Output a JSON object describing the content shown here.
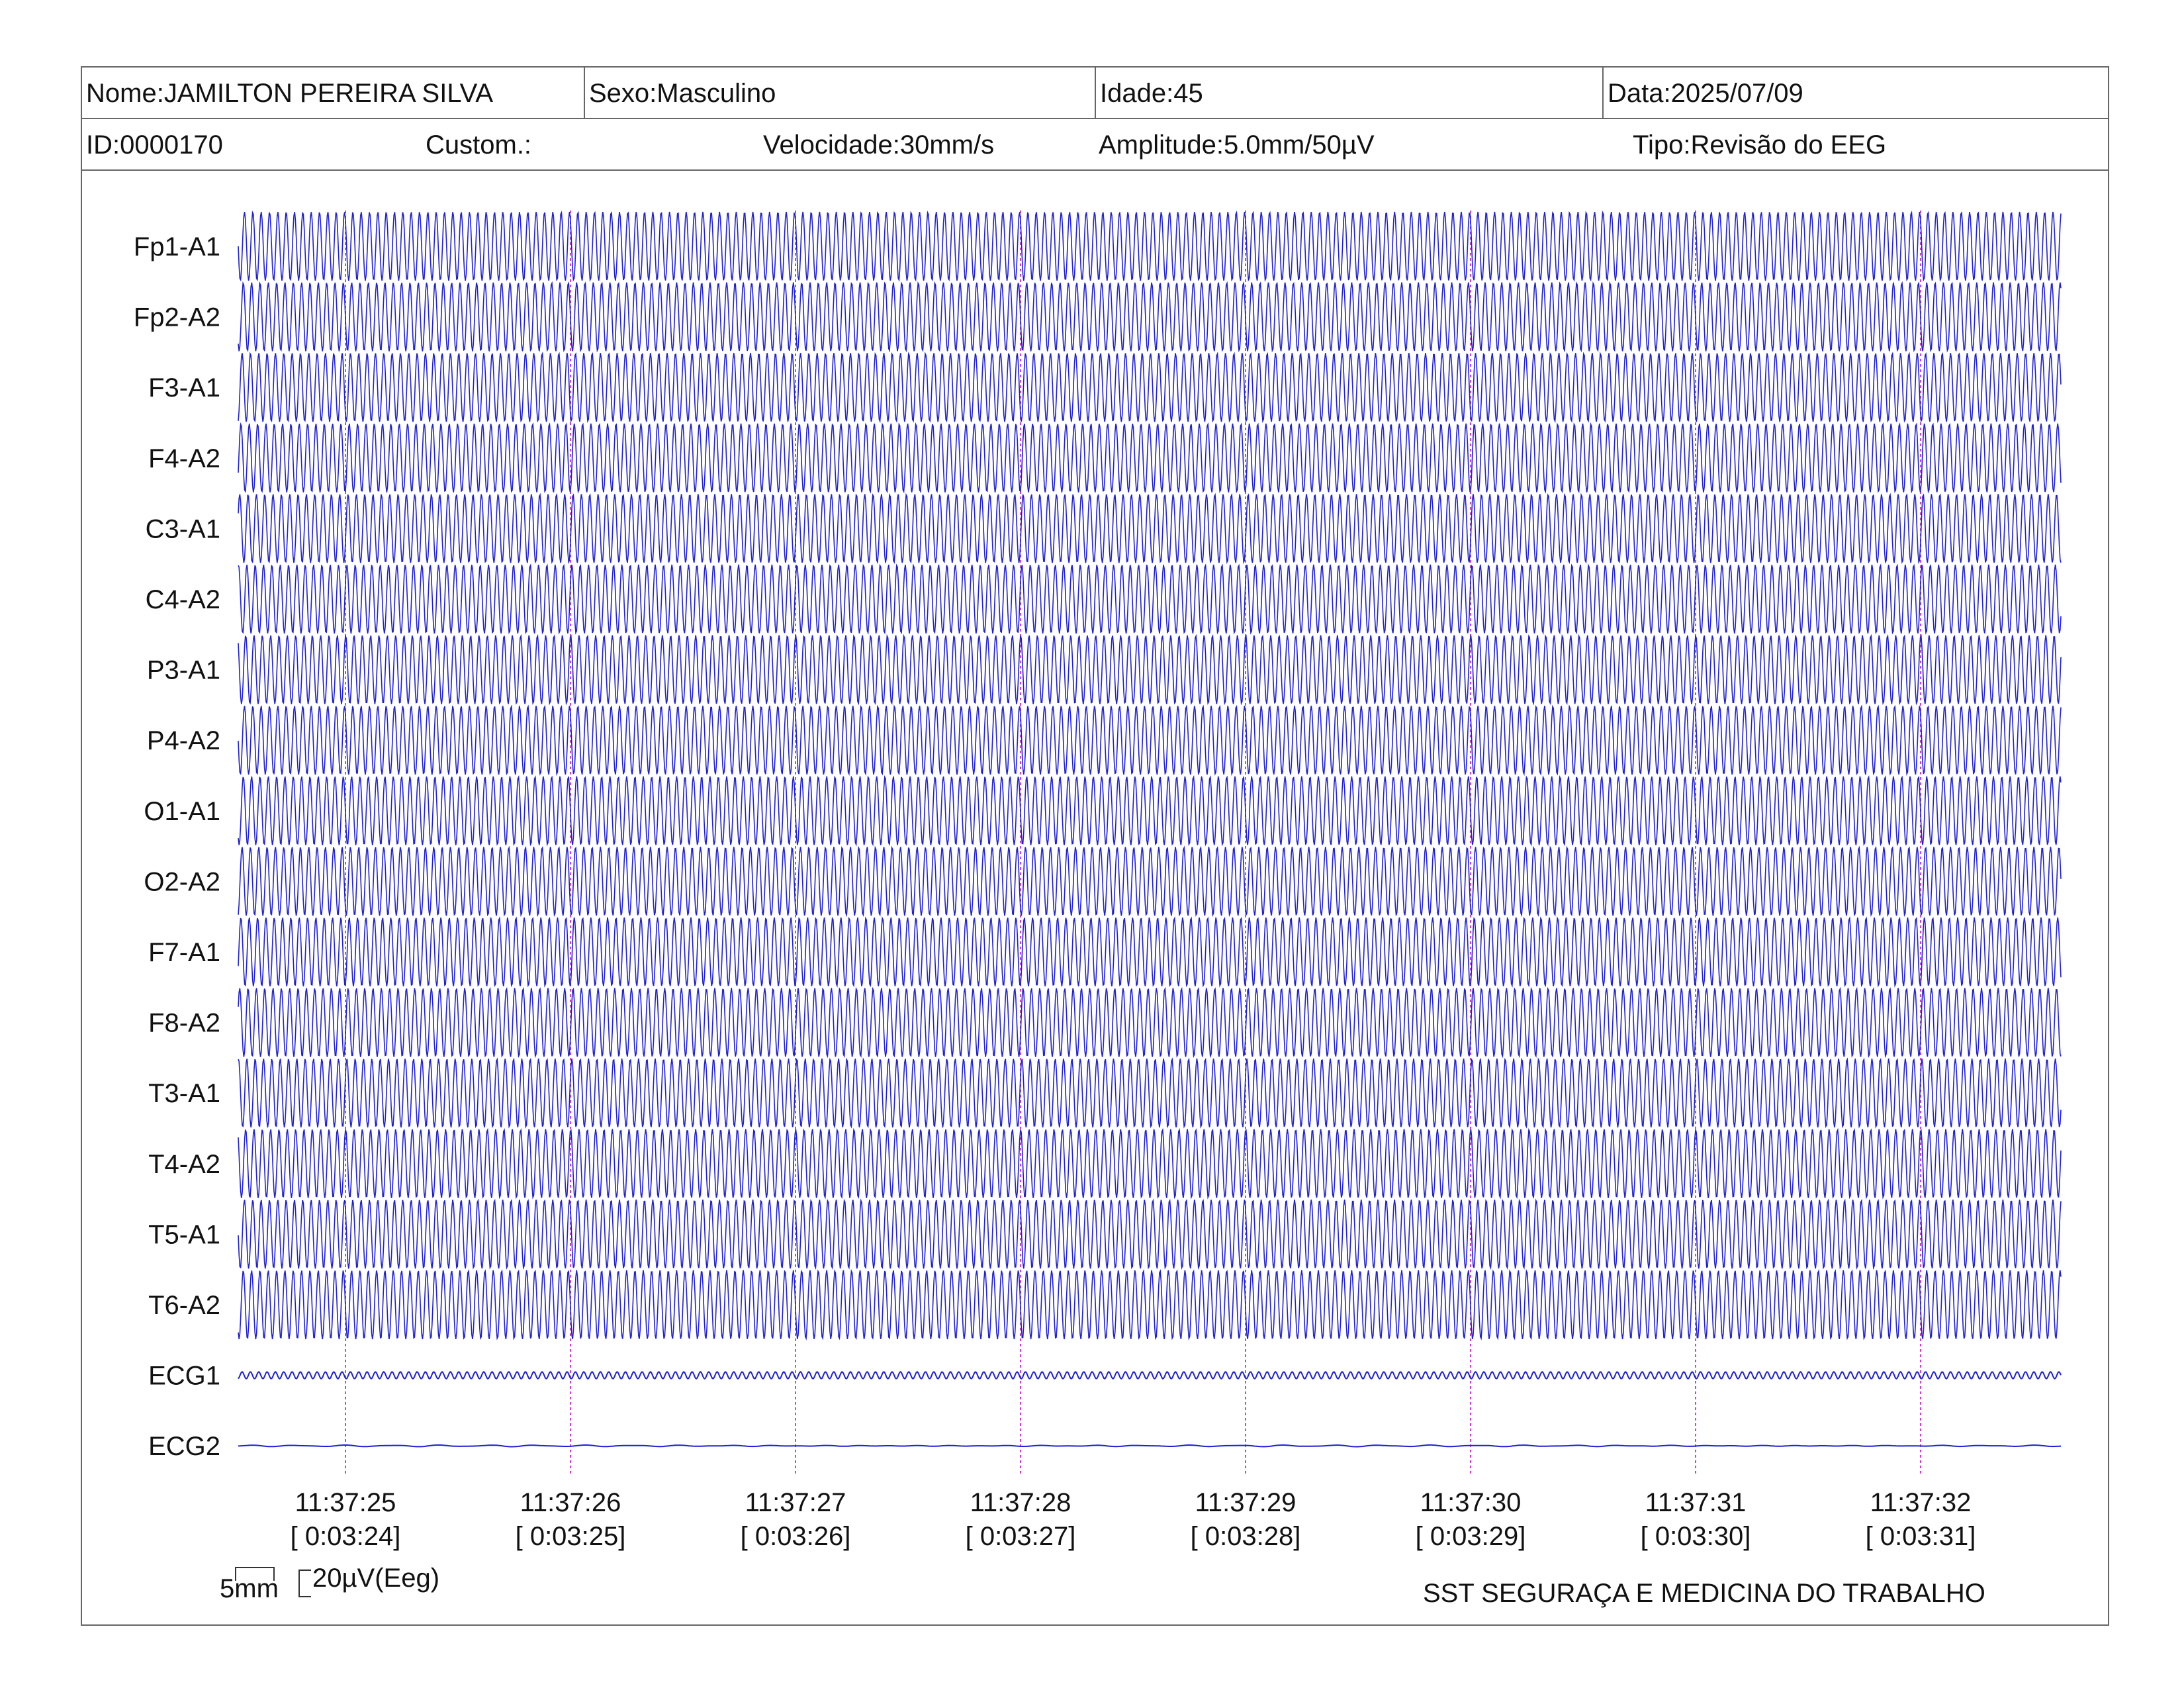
{
  "header": {
    "name": "Nome:JAMILTON PEREIRA SILVA",
    "sex": "Sexo:Masculino",
    "age": "Idade:45",
    "date": "Data:2025/07/09",
    "id": "ID:0000170",
    "custom": "Custom.:",
    "speed": "Velocidade:30mm/s",
    "amplitude": "Amplitude:5.0mm/50µV",
    "type": "Tipo:Revisão do EEG"
  },
  "footer": {
    "scale_time": "5mm",
    "scale_amp": "20µV(Eeg)",
    "company": "SST SEGURAÇA E MEDICINA DO TRABALHO"
  },
  "chart_data": {
    "type": "line",
    "title": "",
    "x_unit": "s",
    "x_range": [
      "11:37:24.5",
      "11:37:32.6"
    ],
    "trace_color": "#1f1fd6",
    "marker_color": "#d040d0",
    "time_marks": [
      {
        "clock": "11:37:25",
        "elapsed": "[ 0:03:24]"
      },
      {
        "clock": "11:37:26",
        "elapsed": "[ 0:03:25]"
      },
      {
        "clock": "11:37:27",
        "elapsed": "[ 0:03:26]"
      },
      {
        "clock": "11:37:28",
        "elapsed": "[ 0:03:27]"
      },
      {
        "clock": "11:37:29",
        "elapsed": "[ 0:03:28]"
      },
      {
        "clock": "11:37:30",
        "elapsed": "[ 0:03:29]"
      },
      {
        "clock": "11:37:31",
        "elapsed": "[ 0:03:30]"
      },
      {
        "clock": "11:37:32",
        "elapsed": "[ 0:03:31]"
      }
    ],
    "series": [
      {
        "name": "Fp1-A1",
        "kind": "eeg",
        "freq_hz": 27,
        "amp_rel": 1.0
      },
      {
        "name": "Fp2-A2",
        "kind": "eeg",
        "freq_hz": 27,
        "amp_rel": 1.0
      },
      {
        "name": "F3-A1",
        "kind": "eeg",
        "freq_hz": 27,
        "amp_rel": 1.0
      },
      {
        "name": "F4-A2",
        "kind": "eeg",
        "freq_hz": 27,
        "amp_rel": 1.0
      },
      {
        "name": "C3-A1",
        "kind": "eeg",
        "freq_hz": 27,
        "amp_rel": 1.0
      },
      {
        "name": "C4-A2",
        "kind": "eeg",
        "freq_hz": 27,
        "amp_rel": 1.0
      },
      {
        "name": "P3-A1",
        "kind": "eeg",
        "freq_hz": 27,
        "amp_rel": 1.0
      },
      {
        "name": "P4-A2",
        "kind": "eeg",
        "freq_hz": 27,
        "amp_rel": 1.0
      },
      {
        "name": "O1-A1",
        "kind": "eeg",
        "freq_hz": 27,
        "amp_rel": 1.0
      },
      {
        "name": "O2-A2",
        "kind": "eeg",
        "freq_hz": 27,
        "amp_rel": 1.0
      },
      {
        "name": "F7-A1",
        "kind": "eeg",
        "freq_hz": 27,
        "amp_rel": 1.0
      },
      {
        "name": "F8-A2",
        "kind": "eeg",
        "freq_hz": 27,
        "amp_rel": 1.0
      },
      {
        "name": "T3-A1",
        "kind": "eeg",
        "freq_hz": 27,
        "amp_rel": 1.0
      },
      {
        "name": "T4-A2",
        "kind": "eeg",
        "freq_hz": 27,
        "amp_rel": 1.0
      },
      {
        "name": "T5-A1",
        "kind": "eeg",
        "freq_hz": 27,
        "amp_rel": 1.0
      },
      {
        "name": "T6-A2",
        "kind": "eeg",
        "freq_hz": 27,
        "amp_rel": 1.0
      },
      {
        "name": "ECG1",
        "kind": "ecg",
        "freq_hz": 27,
        "amp_rel": 0.1
      },
      {
        "name": "ECG2",
        "kind": "ecg",
        "freq_hz": 6,
        "amp_rel": 0.03
      }
    ]
  }
}
